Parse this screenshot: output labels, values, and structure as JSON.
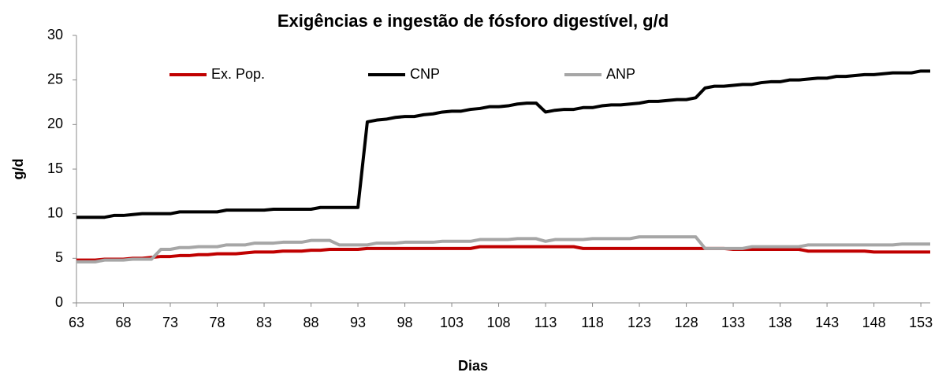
{
  "chart_data": {
    "type": "line",
    "title": "Exigências e ingestão de fósforo digestível, g/d",
    "xlabel": "Dias",
    "ylabel": "g/d",
    "x": [
      63,
      64,
      65,
      66,
      67,
      68,
      69,
      70,
      71,
      72,
      73,
      74,
      75,
      76,
      77,
      78,
      79,
      80,
      81,
      82,
      83,
      84,
      85,
      86,
      87,
      88,
      89,
      90,
      91,
      92,
      93,
      94,
      95,
      96,
      97,
      98,
      99,
      100,
      101,
      102,
      103,
      104,
      105,
      106,
      107,
      108,
      109,
      110,
      111,
      112,
      113,
      114,
      115,
      116,
      117,
      118,
      119,
      120,
      121,
      122,
      123,
      124,
      125,
      126,
      127,
      128,
      129,
      130,
      131,
      132,
      133,
      134,
      135,
      136,
      137,
      138,
      139,
      140,
      141,
      142,
      143,
      144,
      145,
      146,
      147,
      148,
      149,
      150,
      151,
      152,
      153,
      154
    ],
    "xlim": [
      63,
      154
    ],
    "xticks": [
      63,
      68,
      73,
      78,
      83,
      88,
      93,
      98,
      103,
      108,
      113,
      118,
      123,
      128,
      133,
      138,
      143,
      148,
      153
    ],
    "ylim": [
      0,
      30
    ],
    "yticks": [
      0,
      5,
      10,
      15,
      20,
      25,
      30
    ],
    "series": [
      {
        "name": "Ex. Pop.",
        "color": "#c00000",
        "values": [
          4.8,
          4.8,
          4.8,
          4.9,
          4.9,
          4.9,
          5.0,
          5.0,
          5.1,
          5.2,
          5.2,
          5.3,
          5.3,
          5.4,
          5.4,
          5.5,
          5.5,
          5.5,
          5.6,
          5.7,
          5.7,
          5.7,
          5.8,
          5.8,
          5.8,
          5.9,
          5.9,
          6.0,
          6.0,
          6.0,
          6.0,
          6.1,
          6.1,
          6.1,
          6.1,
          6.1,
          6.1,
          6.1,
          6.1,
          6.1,
          6.1,
          6.1,
          6.1,
          6.3,
          6.3,
          6.3,
          6.3,
          6.3,
          6.3,
          6.3,
          6.3,
          6.3,
          6.3,
          6.3,
          6.1,
          6.1,
          6.1,
          6.1,
          6.1,
          6.1,
          6.1,
          6.1,
          6.1,
          6.1,
          6.1,
          6.1,
          6.1,
          6.1,
          6.1,
          6.1,
          6.0,
          6.0,
          6.0,
          6.0,
          6.0,
          6.0,
          6.0,
          6.0,
          5.8,
          5.8,
          5.8,
          5.8,
          5.8,
          5.8,
          5.8,
          5.7,
          5.7,
          5.7,
          5.7,
          5.7,
          5.7,
          5.7
        ]
      },
      {
        "name": "CNP",
        "color": "#000000",
        "values": [
          9.6,
          9.6,
          9.6,
          9.6,
          9.8,
          9.8,
          9.9,
          10.0,
          10.0,
          10.0,
          10.0,
          10.2,
          10.2,
          10.2,
          10.2,
          10.2,
          10.4,
          10.4,
          10.4,
          10.4,
          10.4,
          10.5,
          10.5,
          10.5,
          10.5,
          10.5,
          10.7,
          10.7,
          10.7,
          10.7,
          10.7,
          20.3,
          20.5,
          20.6,
          20.8,
          20.9,
          20.9,
          21.1,
          21.2,
          21.4,
          21.5,
          21.5,
          21.7,
          21.8,
          22.0,
          22.0,
          22.1,
          22.3,
          22.4,
          22.4,
          21.4,
          21.6,
          21.7,
          21.7,
          21.9,
          21.9,
          22.1,
          22.2,
          22.2,
          22.3,
          22.4,
          22.6,
          22.6,
          22.7,
          22.8,
          22.8,
          23.0,
          24.1,
          24.3,
          24.3,
          24.4,
          24.5,
          24.5,
          24.7,
          24.8,
          24.8,
          25.0,
          25.0,
          25.1,
          25.2,
          25.2,
          25.4,
          25.4,
          25.5,
          25.6,
          25.6,
          25.7,
          25.8,
          25.8,
          25.8,
          26.0,
          26.0
        ]
      },
      {
        "name": "ANP",
        "color": "#a6a6a6",
        "values": [
          4.6,
          4.6,
          4.6,
          4.8,
          4.8,
          4.8,
          4.9,
          4.9,
          4.9,
          6.0,
          6.0,
          6.2,
          6.2,
          6.3,
          6.3,
          6.3,
          6.5,
          6.5,
          6.5,
          6.7,
          6.7,
          6.7,
          6.8,
          6.8,
          6.8,
          7.0,
          7.0,
          7.0,
          6.5,
          6.5,
          6.5,
          6.5,
          6.7,
          6.7,
          6.7,
          6.8,
          6.8,
          6.8,
          6.8,
          6.9,
          6.9,
          6.9,
          6.9,
          7.1,
          7.1,
          7.1,
          7.1,
          7.2,
          7.2,
          7.2,
          6.9,
          7.1,
          7.1,
          7.1,
          7.1,
          7.2,
          7.2,
          7.2,
          7.2,
          7.2,
          7.4,
          7.4,
          7.4,
          7.4,
          7.4,
          7.4,
          7.4,
          6.1,
          6.1,
          6.1,
          6.1,
          6.1,
          6.3,
          6.3,
          6.3,
          6.3,
          6.3,
          6.3,
          6.5,
          6.5,
          6.5,
          6.5,
          6.5,
          6.5,
          6.5,
          6.5,
          6.5,
          6.5,
          6.6,
          6.6,
          6.6,
          6.6
        ]
      }
    ]
  }
}
